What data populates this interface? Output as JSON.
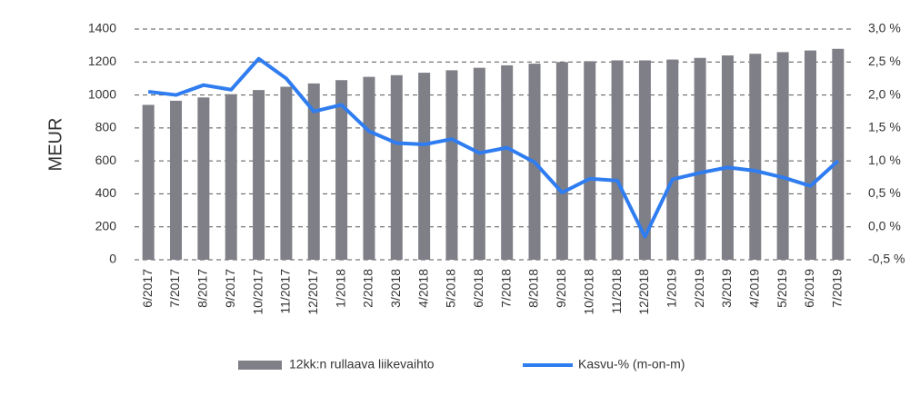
{
  "chart_data": {
    "type": "bar+line",
    "y_label": "MEUR",
    "categories": [
      "6/2017",
      "7/2017",
      "8/2017",
      "9/2017",
      "10/2017",
      "11/2017",
      "12/2017",
      "1/2018",
      "2/2018",
      "3/2018",
      "4/2018",
      "5/2018",
      "6/2018",
      "7/2018",
      "8/2018",
      "9/2018",
      "10/2018",
      "11/2018",
      "12/2018",
      "1/2019",
      "2/2019",
      "3/2019",
      "4/2019",
      "5/2019",
      "6/2019",
      "7/2019"
    ],
    "series": [
      {
        "name": "12kk:n rullaava liikevaihto",
        "type": "bar",
        "color": "#7f7f87",
        "values": [
          940,
          965,
          985,
          1005,
          1030,
          1050,
          1070,
          1090,
          1110,
          1120,
          1135,
          1150,
          1165,
          1180,
          1190,
          1200,
          1205,
          1210,
          1210,
          1215,
          1225,
          1240,
          1250,
          1260,
          1270,
          1280
        ]
      },
      {
        "name": "Kasvu-% (m-on-m)",
        "type": "line",
        "axis": "y2",
        "color": "#2f7df0",
        "values": [
          2.05,
          2.0,
          2.15,
          2.08,
          2.55,
          2.25,
          1.75,
          1.85,
          1.45,
          1.27,
          1.25,
          1.33,
          1.12,
          1.2,
          0.98,
          0.52,
          0.73,
          0.7,
          -0.15,
          0.72,
          0.82,
          0.9,
          0.85,
          0.75,
          0.62,
          1.0
        ]
      }
    ],
    "ylim": [
      0,
      1400
    ],
    "yticks": [
      0,
      200,
      400,
      600,
      800,
      1000,
      1200,
      1400
    ],
    "y2lim": [
      -0.5,
      3.0
    ],
    "y2ticks": [
      {
        "value": -0.5,
        "label": "-0,5 %"
      },
      {
        "value": 0,
        "label": "0,0 %"
      },
      {
        "value": 0.5,
        "label": "0,5 %"
      },
      {
        "value": 1.0,
        "label": "1,0 %"
      },
      {
        "value": 1.5,
        "label": "1,5 %"
      },
      {
        "value": 2.0,
        "label": "2,0 %"
      },
      {
        "value": 2.5,
        "label": "2,5 %"
      },
      {
        "value": 3.0,
        "label": "3,0 %"
      }
    ],
    "grid": true,
    "legend": "bottom"
  }
}
